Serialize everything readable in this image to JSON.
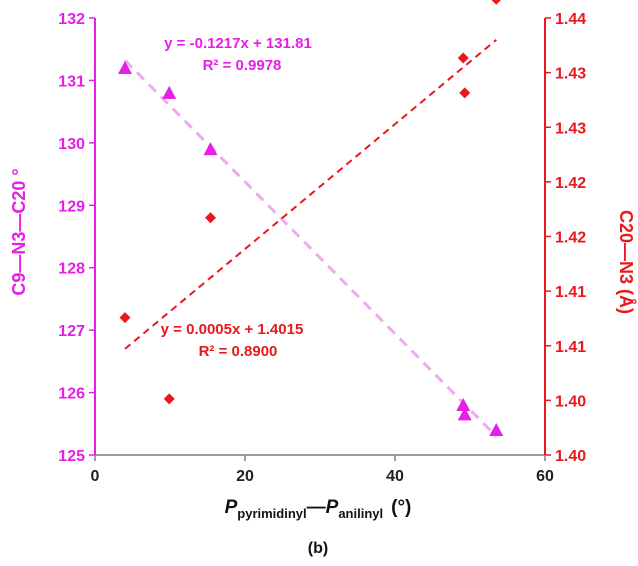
{
  "chart_data": {
    "type": "scatter",
    "caption": "(b)",
    "xlabel": {
      "main": "P",
      "sub1": "pyrimidinyl",
      "dash": "—",
      "main2": "P",
      "sub2": "anilinyl",
      "unit": "(°)"
    },
    "ylabel_left": "C9—N3—C20 °",
    "ylabel_right": "C20—N3 (Å)",
    "xlim": [
      0,
      60
    ],
    "ylim_left": [
      125,
      132
    ],
    "ylim_right": [
      1.395,
      1.43
    ],
    "x_ticks": [
      "0",
      "20",
      "40",
      "60"
    ],
    "y_left_ticks": [
      "125",
      "126",
      "127",
      "128",
      "129",
      "130",
      "131",
      "132"
    ],
    "y_right_ticks": [
      "1.40",
      "1.40",
      "1.41",
      "1.41",
      "1.42",
      "1.42",
      "1.43",
      "1.43",
      "1.44"
    ],
    "series": [
      {
        "axis": "left",
        "marker": "triangle",
        "color": "#e61ee6",
        "points": [
          [
            4,
            131.2
          ],
          [
            9.9,
            130.8
          ],
          [
            15.4,
            129.9
          ],
          [
            49.1,
            125.8
          ],
          [
            49.3,
            125.65
          ],
          [
            53.5,
            125.4
          ]
        ],
        "fit": {
          "slope": -0.1217,
          "intercept": 131.81,
          "x_range": [
            4,
            53.5
          ],
          "color": "#f0aaf0"
        },
        "equation": "y = -0.1217x + 131.81",
        "r2": "R² = 0.9978"
      },
      {
        "axis": "right",
        "marker": "diamond",
        "color": "#e8181e",
        "points": [
          [
            4,
            1.406
          ],
          [
            9.9,
            1.3995
          ],
          [
            15.4,
            1.414
          ],
          [
            49.1,
            1.4268
          ],
          [
            49.3,
            1.424
          ],
          [
            53.5,
            1.4315
          ]
        ],
        "fit": {
          "slope": 0.0005,
          "intercept": 1.4015,
          "x_range": [
            4,
            53.5
          ],
          "color": "#e8181e"
        },
        "equation": "y = 0.0005x + 1.4015",
        "r2": "R² = 0.8900"
      }
    ],
    "axis_colors": {
      "left": "#e61ee6",
      "right": "#e8181e",
      "x": "#7f7f7f"
    }
  }
}
